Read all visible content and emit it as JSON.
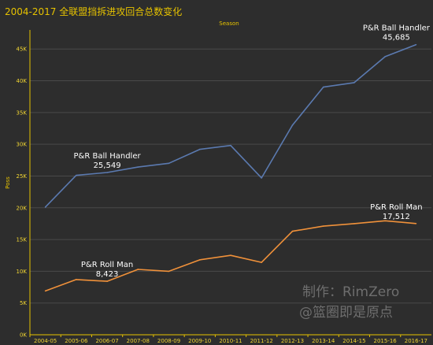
{
  "title": "2004-2017 全联盟挡拆进攻回合总数变化",
  "watermark": {
    "line1": "制作：RimZero",
    "line2": "@篮圈即是原点"
  },
  "chart_data": {
    "type": "line",
    "xlabel": "Season",
    "ylabel": "Poss",
    "categories": [
      "2004-05",
      "2005-06",
      "2006-07",
      "2007-08",
      "2008-09",
      "2009-10",
      "2010-11",
      "2011-12",
      "2012-13",
      "2013-14",
      "2014-15",
      "2015-16",
      "2016-17"
    ],
    "ylim": [
      0,
      48000
    ],
    "yticks": [
      0,
      5000,
      10000,
      15000,
      20000,
      25000,
      30000,
      35000,
      40000,
      45000
    ],
    "ytick_labels": [
      "0K",
      "5K",
      "10K",
      "15K",
      "20K",
      "25K",
      "30K",
      "35K",
      "40K",
      "45K"
    ],
    "grid": true,
    "series": [
      {
        "name": "P&R Ball Handler",
        "color": "#5b7ab0",
        "values": [
          20100,
          25100,
          25549,
          26400,
          27000,
          29200,
          29800,
          24700,
          33000,
          39000,
          39700,
          43800,
          45685
        ]
      },
      {
        "name": "P&R Roll Man",
        "color": "#f0913a",
        "values": [
          6900,
          8700,
          8423,
          10300,
          10000,
          11800,
          12500,
          11400,
          16300,
          17100,
          17500,
          17950,
          17512
        ]
      }
    ],
    "annotations": [
      {
        "series": 0,
        "index": 2,
        "name": "P&R Ball Handler",
        "value": "25,549"
      },
      {
        "series": 0,
        "index": 12,
        "name": "P&R Ball Handler",
        "value": "45,685"
      },
      {
        "series": 1,
        "index": 2,
        "name": "P&R Roll Man",
        "value": "8,423"
      },
      {
        "series": 1,
        "index": 12,
        "name": "P&R Roll Man",
        "value": "17,512"
      }
    ]
  }
}
